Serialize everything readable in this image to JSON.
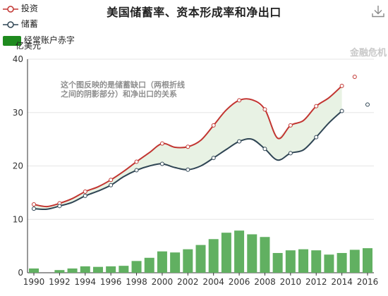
{
  "title": "美国储蓄率、资本形成率和净出口",
  "legend": {
    "investment": "投资",
    "saving": "储蓄",
    "deficit": "经常账户赤字"
  },
  "unit_label": "亿美元",
  "annotation": "这个图反映的是储蓄缺口（两根折线\n之间的阴影部分）和净出口的关系",
  "watermark": "金融危机",
  "icons": {
    "download": "download-icon"
  },
  "colors": {
    "investment": "#c23531",
    "saving": "#2f4554",
    "bars": "#61b061",
    "gap_fill": "#e8f2e4",
    "point_fill": "#ffffff",
    "grid": "#e6e6e6"
  },
  "chart_data": {
    "type": "line",
    "x": [
      1990,
      1991,
      1992,
      1993,
      1994,
      1995,
      1996,
      1997,
      1998,
      1999,
      2000,
      2001,
      2002,
      2003,
      2004,
      2005,
      2006,
      2007,
      2008,
      2009,
      2010,
      2011,
      2012,
      2013,
      2014,
      2015,
      2016
    ],
    "series": [
      {
        "name": "投资",
        "values": [
          12.8,
          12.4,
          13.0,
          13.9,
          15.2,
          16.1,
          17.4,
          19.0,
          20.8,
          22.5,
          24.2,
          23.5,
          23.6,
          24.8,
          27.6,
          30.5,
          32.3,
          32.4,
          30.6,
          25.2,
          27.6,
          28.5,
          31.2,
          32.8,
          35.0,
          36.7,
          null
        ]
      },
      {
        "name": "储蓄",
        "values": [
          12.0,
          11.9,
          12.5,
          13.2,
          14.4,
          15.3,
          16.4,
          18.0,
          19.2,
          20.0,
          20.4,
          19.7,
          19.3,
          20.0,
          21.5,
          23.1,
          24.6,
          25.0,
          23.2,
          21.1,
          22.4,
          23.0,
          25.4,
          28.1,
          30.3,
          null,
          31.5
        ]
      },
      {
        "name": "经常账户赤字",
        "type": "bar",
        "values": [
          0.8,
          0.0,
          0.5,
          0.8,
          1.2,
          1.1,
          1.2,
          1.3,
          2.2,
          2.8,
          4.0,
          3.8,
          4.4,
          5.2,
          6.3,
          7.5,
          7.9,
          7.2,
          6.7,
          3.7,
          4.2,
          4.4,
          4.2,
          3.4,
          3.7,
          4.3,
          4.6
        ]
      }
    ],
    "xlabel": "",
    "ylabel": "亿美元",
    "ylim": [
      0,
      40
    ],
    "yticks": [
      0,
      10,
      20,
      30,
      40
    ],
    "xticks": [
      1990,
      1992,
      1994,
      1996,
      1998,
      2000,
      2002,
      2004,
      2006,
      2008,
      2010,
      2012,
      2014,
      2016
    ],
    "marked_points": {
      "投资": [
        1990,
        1992,
        1994,
        1996,
        1998,
        2000,
        2002,
        2004,
        2006,
        2008,
        2010,
        2012,
        2014,
        2015
      ],
      "储蓄": [
        1990,
        1992,
        1994,
        1996,
        1998,
        2000,
        2002,
        2004,
        2006,
        2008,
        2010,
        2012,
        2014,
        2016
      ]
    },
    "grid": true,
    "legend_position": "top-left",
    "shaded_gap": "between 投资 and 储蓄"
  }
}
